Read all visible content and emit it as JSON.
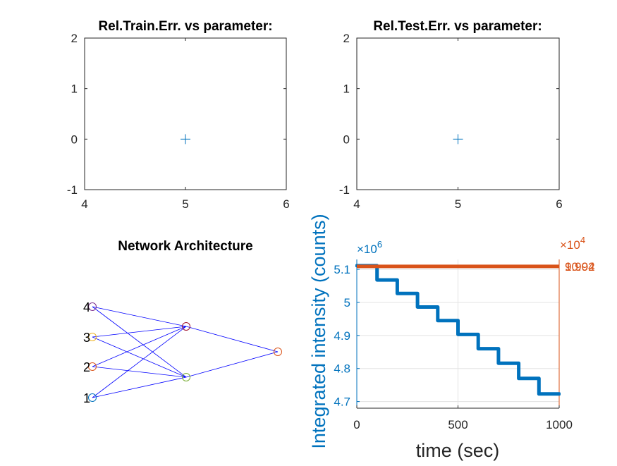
{
  "chart_data": [
    {
      "id": "train",
      "type": "scatter",
      "title": "Rel.Train.Err. vs parameter:",
      "xlim": [
        4,
        6
      ],
      "ylim": [
        -1,
        2
      ],
      "xticks": [
        "4",
        "5",
        "6"
      ],
      "yticks": [
        "-1",
        "0",
        "1",
        "2"
      ],
      "points": [
        {
          "x": 5,
          "y": 0
        }
      ],
      "marker": "+",
      "color": "#0072bd"
    },
    {
      "id": "test",
      "type": "scatter",
      "title": "Rel.Test.Err. vs parameter:",
      "xlim": [
        4,
        6
      ],
      "ylim": [
        -1,
        2
      ],
      "xticks": [
        "4",
        "5",
        "6"
      ],
      "yticks": [
        "-1",
        "0",
        "1",
        "2"
      ],
      "points": [
        {
          "x": 5,
          "y": 0
        }
      ],
      "marker": "+",
      "color": "#0072bd"
    },
    {
      "id": "network",
      "type": "diagram",
      "title": "Network Architecture",
      "input_labels": [
        "1",
        "2",
        "3",
        "4"
      ],
      "layers": [
        4,
        2,
        1
      ],
      "node_colors": [
        "#0072bd",
        "#d95319",
        "#edb120",
        "#7e2f8e"
      ],
      "edge_color": "#0000ff"
    },
    {
      "id": "intensity",
      "type": "line",
      "xlabel": "time (sec)",
      "ylabel": "Integrated intensity (counts)",
      "xlim": [
        0,
        1000
      ],
      "xticks": [
        "0",
        "500",
        "1000"
      ],
      "ylim": [
        4.68,
        5.13
      ],
      "yticks": [
        "4.7",
        "4.8",
        "4.9",
        "5",
        "5.1"
      ],
      "y_exponent": "×10",
      "y_exponent_power": "6",
      "right_exponent": "×10",
      "right_exponent_power": "4",
      "right_tick_overlap": "10.04",
      "right_tick_overlap_2": "9.992",
      "grid": true,
      "series": [
        {
          "color": "#0072bd",
          "steps": [
            {
              "x0": 0,
              "x1": 100,
              "y": 5.111
            },
            {
              "x0": 100,
              "x1": 200,
              "y": 5.068
            },
            {
              "x0": 200,
              "x1": 300,
              "y": 5.027
            },
            {
              "x0": 300,
              "x1": 400,
              "y": 4.986
            },
            {
              "x0": 400,
              "x1": 500,
              "y": 4.945
            },
            {
              "x0": 500,
              "x1": 600,
              "y": 4.903
            },
            {
              "x0": 600,
              "x1": 700,
              "y": 4.86
            },
            {
              "x0": 700,
              "x1": 800,
              "y": 4.816
            },
            {
              "x0": 800,
              "x1": 900,
              "y": 4.77
            },
            {
              "x0": 900,
              "x1": 1000,
              "y": 4.723
            }
          ]
        },
        {
          "color": "#d95319",
          "axis": "right",
          "constant_y": 5.109
        }
      ]
    }
  ]
}
